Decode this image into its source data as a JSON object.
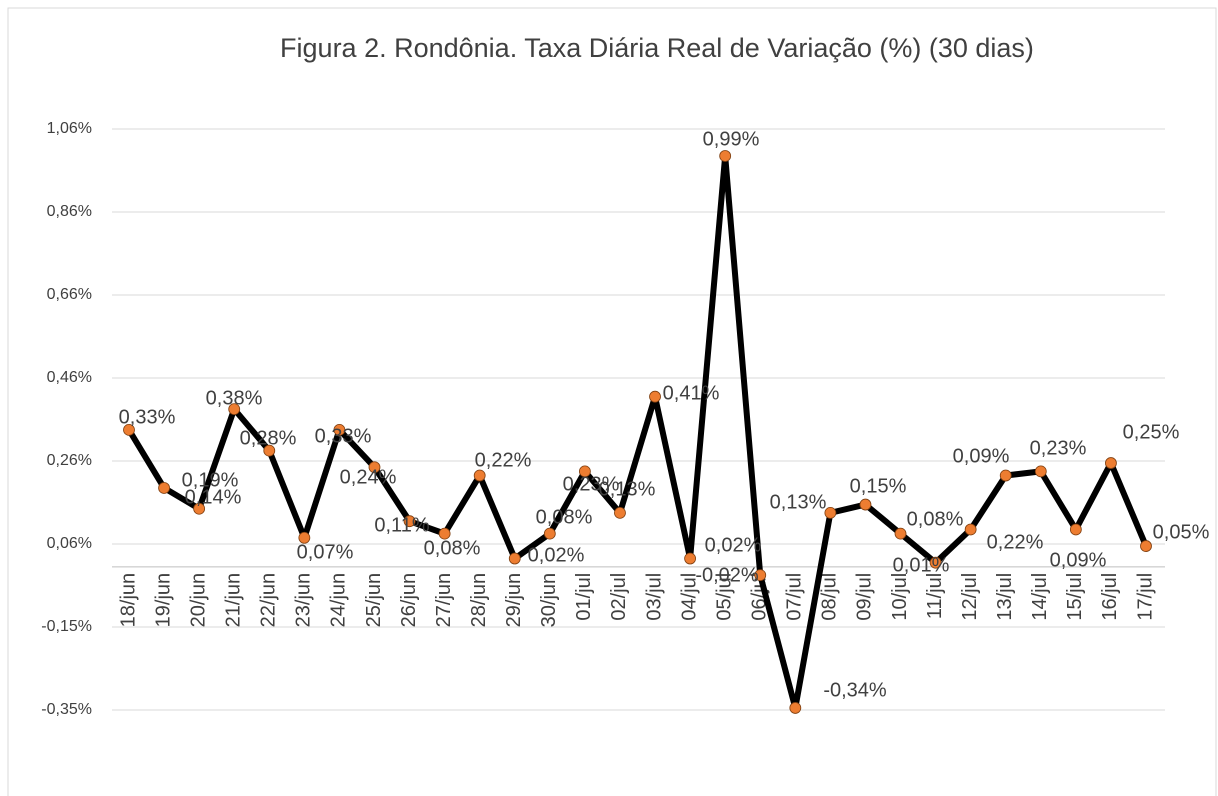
{
  "chart_data": {
    "type": "line",
    "title": "Figura 2. Rondônia. Taxa Diária Real de Variação (%)  (30 dias)",
    "categories": [
      "18/jun",
      "19/jun",
      "20/jun",
      "21/jun",
      "22/jun",
      "23/jun",
      "24/jun",
      "25/jun",
      "26/jun",
      "27/jun",
      "28/jun",
      "29/jun",
      "30/jun",
      "01/jul",
      "02/jul",
      "03/jul",
      "04/jul",
      "05/jul",
      "06/jul",
      "07/jul",
      "08/jul",
      "09/jul",
      "10/jul",
      "11/jul",
      "12/jul",
      "13/jul",
      "14/jul",
      "15/jul",
      "16/jul",
      "17/jul"
    ],
    "values": [
      0.33,
      0.19,
      0.14,
      0.38,
      0.28,
      0.07,
      0.33,
      0.24,
      0.11,
      0.08,
      0.22,
      0.02,
      0.08,
      0.23,
      0.13,
      0.41,
      0.02,
      0.99,
      -0.02,
      -0.34,
      0.13,
      0.15,
      0.08,
      0.01,
      0.09,
      0.22,
      0.23,
      0.09,
      0.25,
      0.05
    ],
    "value_labels": [
      "0,33%",
      "0,19%",
      "0,14%",
      "0,38%",
      "0,28%",
      "0,07%",
      "0,33%",
      "0,24%",
      "0,11%",
      "0,08%",
      "0,22%",
      "0,02%",
      "0,08%",
      "0,23%",
      "0,13%",
      "0,41%",
      "0,02%",
      "0,99%",
      "-0,02%",
      "-0,34%",
      "0,13%",
      "0,15%",
      "0,08%",
      "0,01%",
      "0,09%",
      "0,22%",
      "0,23%",
      "0,09%",
      "0,25%",
      "0,05%"
    ],
    "color": "#000000",
    "marker_color": "#ED7D31",
    "ylim": [
      -0.345,
      1.055
    ],
    "yticks": [
      {
        "value": -0.345,
        "label": "-0,35%"
      },
      {
        "value": -0.145,
        "label": "-0,15%"
      },
      {
        "value": 0.055,
        "label": "0,06%"
      },
      {
        "value": 0.255,
        "label": "0,26%"
      },
      {
        "value": 0.455,
        "label": "0,46%"
      },
      {
        "value": 0.655,
        "label": "0,66%"
      },
      {
        "value": 0.855,
        "label": "0,86%"
      },
      {
        "value": 1.055,
        "label": "1,06%"
      }
    ],
    "grid": true
  }
}
